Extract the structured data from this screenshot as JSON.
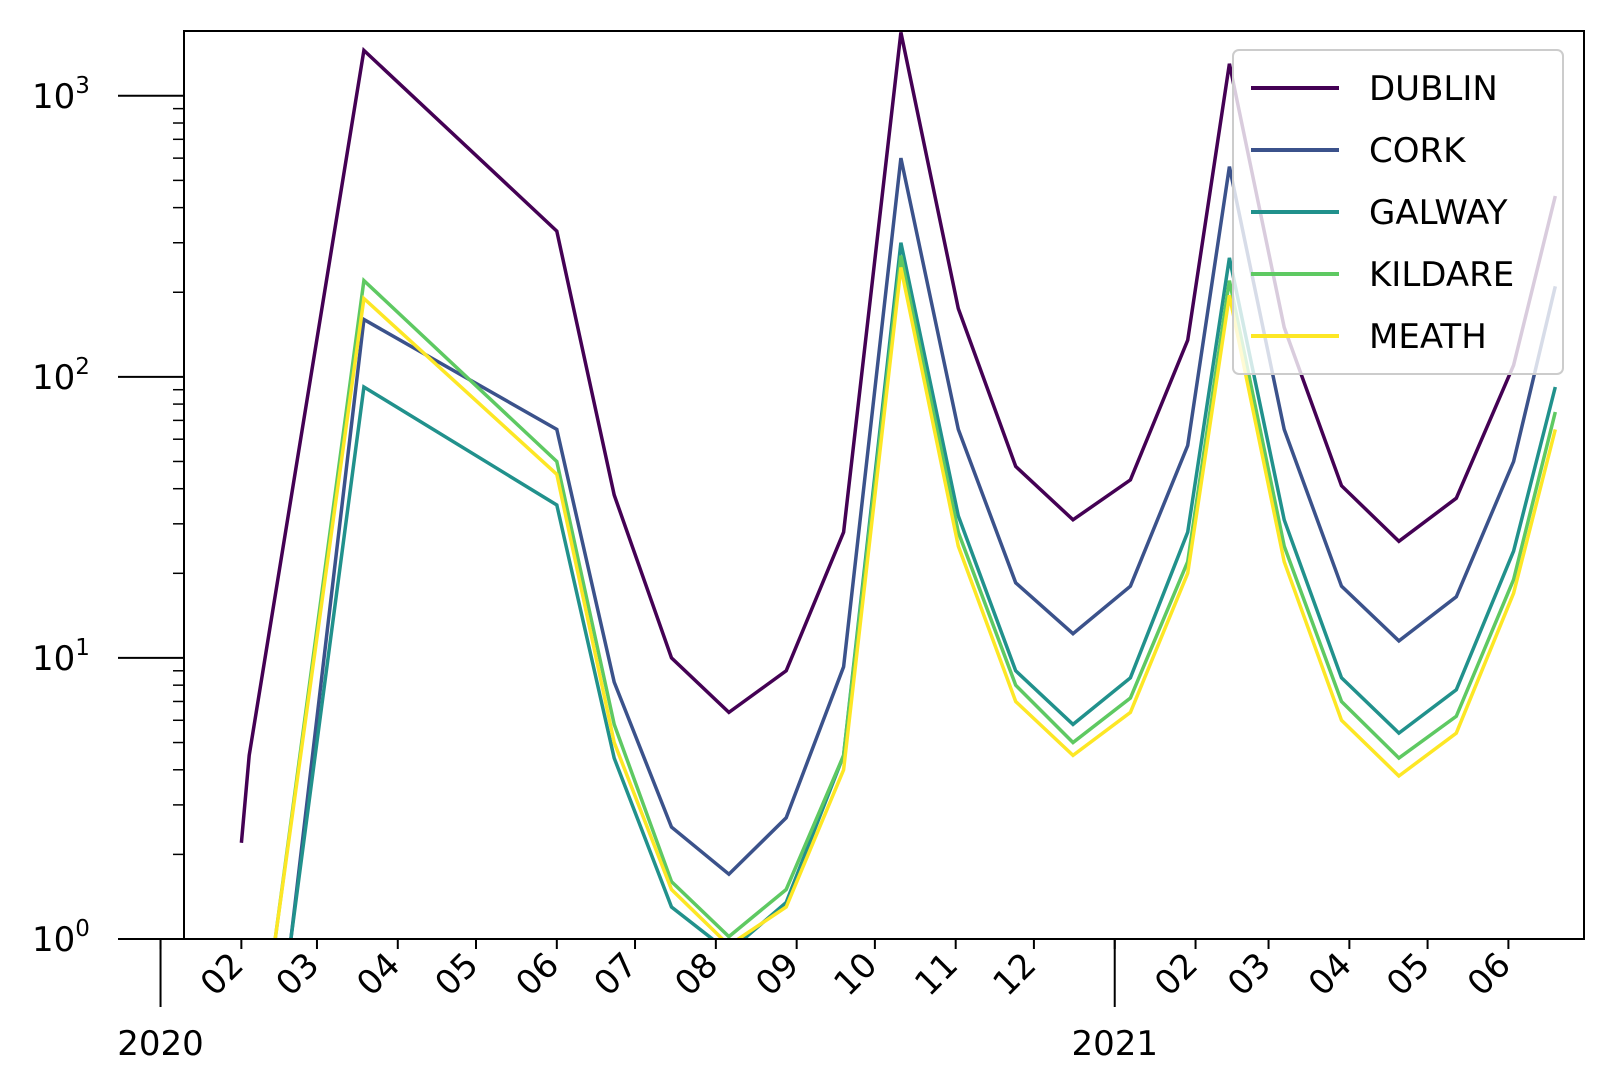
{
  "chart_data": {
    "type": "line",
    "title": "",
    "xlabel": "",
    "ylabel": "",
    "y_scale": "log",
    "ylim": [
      1,
      1700
    ],
    "xlim": [
      "2020-01-10",
      "2021-06-30"
    ],
    "grid": false,
    "legend_position": "top-right",
    "y_ticks": [
      {
        "value": 1,
        "base": "10",
        "exp": "0"
      },
      {
        "value": 10,
        "base": "10",
        "exp": "1"
      },
      {
        "value": 100,
        "base": "10",
        "exp": "2"
      },
      {
        "value": 1000,
        "base": "10",
        "exp": "3"
      }
    ],
    "x_month_ticks": [
      {
        "date": "2020-01-01",
        "label": ""
      },
      {
        "date": "2020-02-01",
        "label": "02"
      },
      {
        "date": "2020-03-01",
        "label": "03"
      },
      {
        "date": "2020-04-01",
        "label": "04"
      },
      {
        "date": "2020-05-01",
        "label": "05"
      },
      {
        "date": "2020-06-01",
        "label": "06"
      },
      {
        "date": "2020-07-01",
        "label": "07"
      },
      {
        "date": "2020-08-01",
        "label": "08"
      },
      {
        "date": "2020-09-01",
        "label": "09"
      },
      {
        "date": "2020-10-01",
        "label": "10"
      },
      {
        "date": "2020-11-01",
        "label": "11"
      },
      {
        "date": "2020-12-01",
        "label": "12"
      },
      {
        "date": "2021-01-01",
        "label": ""
      },
      {
        "date": "2021-02-01",
        "label": "02"
      },
      {
        "date": "2021-03-01",
        "label": "03"
      },
      {
        "date": "2021-04-01",
        "label": "04"
      },
      {
        "date": "2021-05-01",
        "label": "05"
      },
      {
        "date": "2021-06-01",
        "label": "06"
      }
    ],
    "x_year_ticks": [
      {
        "date": "2020-01-01",
        "label": "2020"
      },
      {
        "date": "2021-01-01",
        "label": "2021"
      }
    ],
    "series": [
      {
        "name": "DUBLIN",
        "color": "#440154",
        "points": [
          [
            "2020-02-01",
            2.2
          ],
          [
            "2020-02-04",
            4.5
          ],
          [
            "2020-03-19",
            1450
          ],
          [
            "2020-06-01",
            330
          ],
          [
            "2020-06-23",
            38
          ],
          [
            "2020-07-15",
            10
          ],
          [
            "2020-08-06",
            6.4
          ],
          [
            "2020-08-28",
            9
          ],
          [
            "2020-09-19",
            28
          ],
          [
            "2020-10-11",
            1680
          ],
          [
            "2020-11-02",
            175
          ],
          [
            "2020-11-24",
            48
          ],
          [
            "2020-12-16",
            31
          ],
          [
            "2021-01-07",
            43
          ],
          [
            "2021-01-29",
            135
          ],
          [
            "2021-02-14",
            1300
          ],
          [
            "2021-03-07",
            150
          ],
          [
            "2021-03-29",
            41
          ],
          [
            "2021-04-20",
            26
          ],
          [
            "2021-05-12",
            37
          ],
          [
            "2021-06-03",
            110
          ],
          [
            "2021-06-19",
            440
          ]
        ]
      },
      {
        "name": "CORK",
        "color": "#3b528b",
        "points": [
          [
            "2020-02-20",
            1.0
          ],
          [
            "2020-03-19",
            160
          ],
          [
            "2020-06-01",
            65
          ],
          [
            "2020-06-23",
            8.2
          ],
          [
            "2020-07-15",
            2.5
          ],
          [
            "2020-08-06",
            1.7
          ],
          [
            "2020-08-28",
            2.7
          ],
          [
            "2020-09-19",
            9.3
          ],
          [
            "2020-10-11",
            600
          ],
          [
            "2020-11-02",
            65
          ],
          [
            "2020-11-24",
            18.5
          ],
          [
            "2020-12-16",
            12.2
          ],
          [
            "2021-01-07",
            18
          ],
          [
            "2021-01-29",
            57
          ],
          [
            "2021-02-14",
            560
          ],
          [
            "2021-03-07",
            65
          ],
          [
            "2021-03-29",
            18
          ],
          [
            "2021-04-20",
            11.5
          ],
          [
            "2021-05-12",
            16.5
          ],
          [
            "2021-06-03",
            50
          ],
          [
            "2021-06-19",
            210
          ]
        ]
      },
      {
        "name": "GALWAY",
        "color": "#21918c",
        "points": [
          [
            "2020-02-20",
            1.0
          ],
          [
            "2020-03-19",
            92
          ],
          [
            "2020-06-01",
            35
          ],
          [
            "2020-06-23",
            4.4
          ],
          [
            "2020-07-15",
            1.3
          ],
          [
            "2020-08-06",
            0.9
          ],
          [
            "2020-08-28",
            1.35
          ],
          [
            "2020-09-19",
            4.5
          ],
          [
            "2020-10-11",
            300
          ],
          [
            "2020-11-02",
            32
          ],
          [
            "2020-11-24",
            9
          ],
          [
            "2020-12-16",
            5.8
          ],
          [
            "2021-01-07",
            8.5
          ],
          [
            "2021-01-29",
            28
          ],
          [
            "2021-02-14",
            265
          ],
          [
            "2021-03-07",
            31
          ],
          [
            "2021-03-29",
            8.5
          ],
          [
            "2021-04-20",
            5.4
          ],
          [
            "2021-05-12",
            7.7
          ],
          [
            "2021-06-03",
            24
          ],
          [
            "2021-06-19",
            92
          ]
        ]
      },
      {
        "name": "KILDARE",
        "color": "#5ec962",
        "points": [
          [
            "2020-02-14",
            1.0
          ],
          [
            "2020-03-19",
            220
          ],
          [
            "2020-06-01",
            50
          ],
          [
            "2020-06-23",
            5.8
          ],
          [
            "2020-07-15",
            1.6
          ],
          [
            "2020-08-06",
            1.02
          ],
          [
            "2020-08-28",
            1.5
          ],
          [
            "2020-09-19",
            4.5
          ],
          [
            "2020-10-11",
            270
          ],
          [
            "2020-11-02",
            28
          ],
          [
            "2020-11-24",
            8
          ],
          [
            "2020-12-16",
            5
          ],
          [
            "2021-01-07",
            7.2
          ],
          [
            "2021-01-29",
            22
          ],
          [
            "2021-02-14",
            220
          ],
          [
            "2021-03-07",
            25
          ],
          [
            "2021-03-29",
            7
          ],
          [
            "2021-04-20",
            4.4
          ],
          [
            "2021-05-12",
            6.2
          ],
          [
            "2021-06-03",
            19
          ],
          [
            "2021-06-19",
            75
          ]
        ]
      },
      {
        "name": "MEATH",
        "color": "#fde725",
        "points": [
          [
            "2020-02-14",
            1.0
          ],
          [
            "2020-03-19",
            190
          ],
          [
            "2020-06-01",
            45
          ],
          [
            "2020-06-23",
            5
          ],
          [
            "2020-07-15",
            1.5
          ],
          [
            "2020-08-06",
            0.95
          ],
          [
            "2020-08-28",
            1.3
          ],
          [
            "2020-09-19",
            4
          ],
          [
            "2020-10-11",
            245
          ],
          [
            "2020-11-02",
            25
          ],
          [
            "2020-11-24",
            7
          ],
          [
            "2020-12-16",
            4.5
          ],
          [
            "2021-01-07",
            6.4
          ],
          [
            "2021-01-29",
            20
          ],
          [
            "2021-02-14",
            195
          ],
          [
            "2021-03-07",
            22
          ],
          [
            "2021-03-29",
            6
          ],
          [
            "2021-04-20",
            3.8
          ],
          [
            "2021-05-12",
            5.4
          ],
          [
            "2021-06-03",
            17
          ],
          [
            "2021-06-19",
            65
          ]
        ]
      }
    ]
  }
}
